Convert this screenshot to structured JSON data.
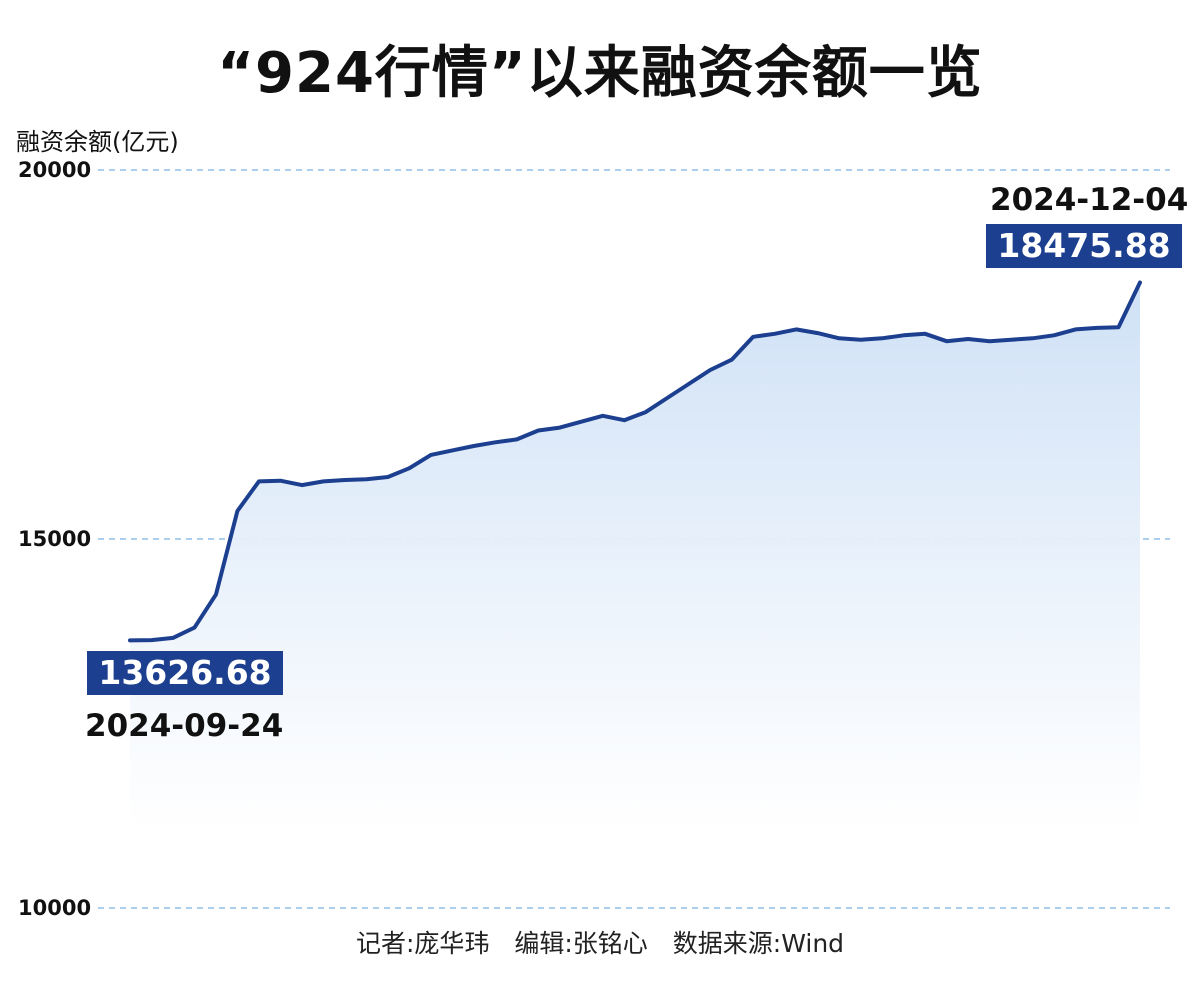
{
  "chart_data": {
    "type": "area",
    "title": "“924行情”以来融资余额一览",
    "ylabel": "融资余额(亿元)",
    "ylim": [
      10000,
      20000
    ],
    "yticks": [
      "20000",
      "15000",
      "10000"
    ],
    "grid": true,
    "series": [
      {
        "values": [
          13626.68,
          13630,
          13660,
          13800,
          14250,
          15380,
          15780,
          15790,
          15730,
          15780,
          15800,
          15810,
          15840,
          15960,
          16140,
          16200,
          16260,
          16310,
          16350,
          16470,
          16510,
          16590,
          16670,
          16610,
          16720,
          16910,
          17100,
          17290,
          17430,
          17740,
          17780,
          17840,
          17790,
          17720,
          17700,
          17720,
          17760,
          17780,
          17680,
          17710,
          17680,
          17700,
          17720,
          17760,
          17840,
          17860,
          17870,
          18475.88
        ]
      }
    ],
    "start": {
      "date": "2024-09-24",
      "value": "13626.68"
    },
    "end": {
      "date": "2024-12-04",
      "value": "18475.88"
    },
    "colors": {
      "line": "#1c3f8f",
      "fill_top": "#d3e4f7",
      "grid": "#8fbfe6",
      "callout": "#1c3f8f"
    }
  },
  "credit": "记者:庞华玮　编辑:张铭心　数据来源:Wind"
}
